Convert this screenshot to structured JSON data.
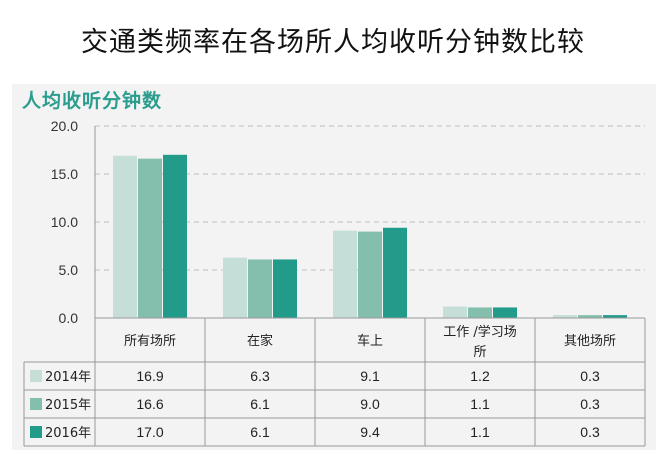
{
  "title": "交通类频率在各场所人均收听分钟数比较",
  "chart_data": {
    "type": "bar",
    "ylabel": "人均收听分钟数",
    "ylim": [
      0,
      20
    ],
    "yticks": [
      "20.0",
      "15.0",
      "10.0",
      "5.0",
      "0.0"
    ],
    "grid": true,
    "categories": [
      "所有场所",
      "在家",
      "车上",
      "工作 /学习场所",
      "其他场所"
    ],
    "series": [
      {
        "name": "2014年",
        "values": [
          16.9,
          6.3,
          9.1,
          1.2,
          0.3
        ],
        "labels": [
          "16.9",
          "6.3",
          "9.1",
          "1.2",
          "0.3"
        ],
        "color": "#c5dfd8"
      },
      {
        "name": "2015年",
        "values": [
          16.6,
          6.1,
          9.0,
          1.1,
          0.3
        ],
        "labels": [
          "16.6",
          "6.1",
          "9.0",
          "1.1",
          "0.3"
        ],
        "color": "#84bfad"
      },
      {
        "name": "2016年",
        "values": [
          17.0,
          6.1,
          9.4,
          1.1,
          0.3
        ],
        "labels": [
          "17.0",
          "6.1",
          "9.4",
          "1.1",
          "0.3"
        ],
        "color": "#239b8b"
      }
    ],
    "legend": "data-table"
  }
}
